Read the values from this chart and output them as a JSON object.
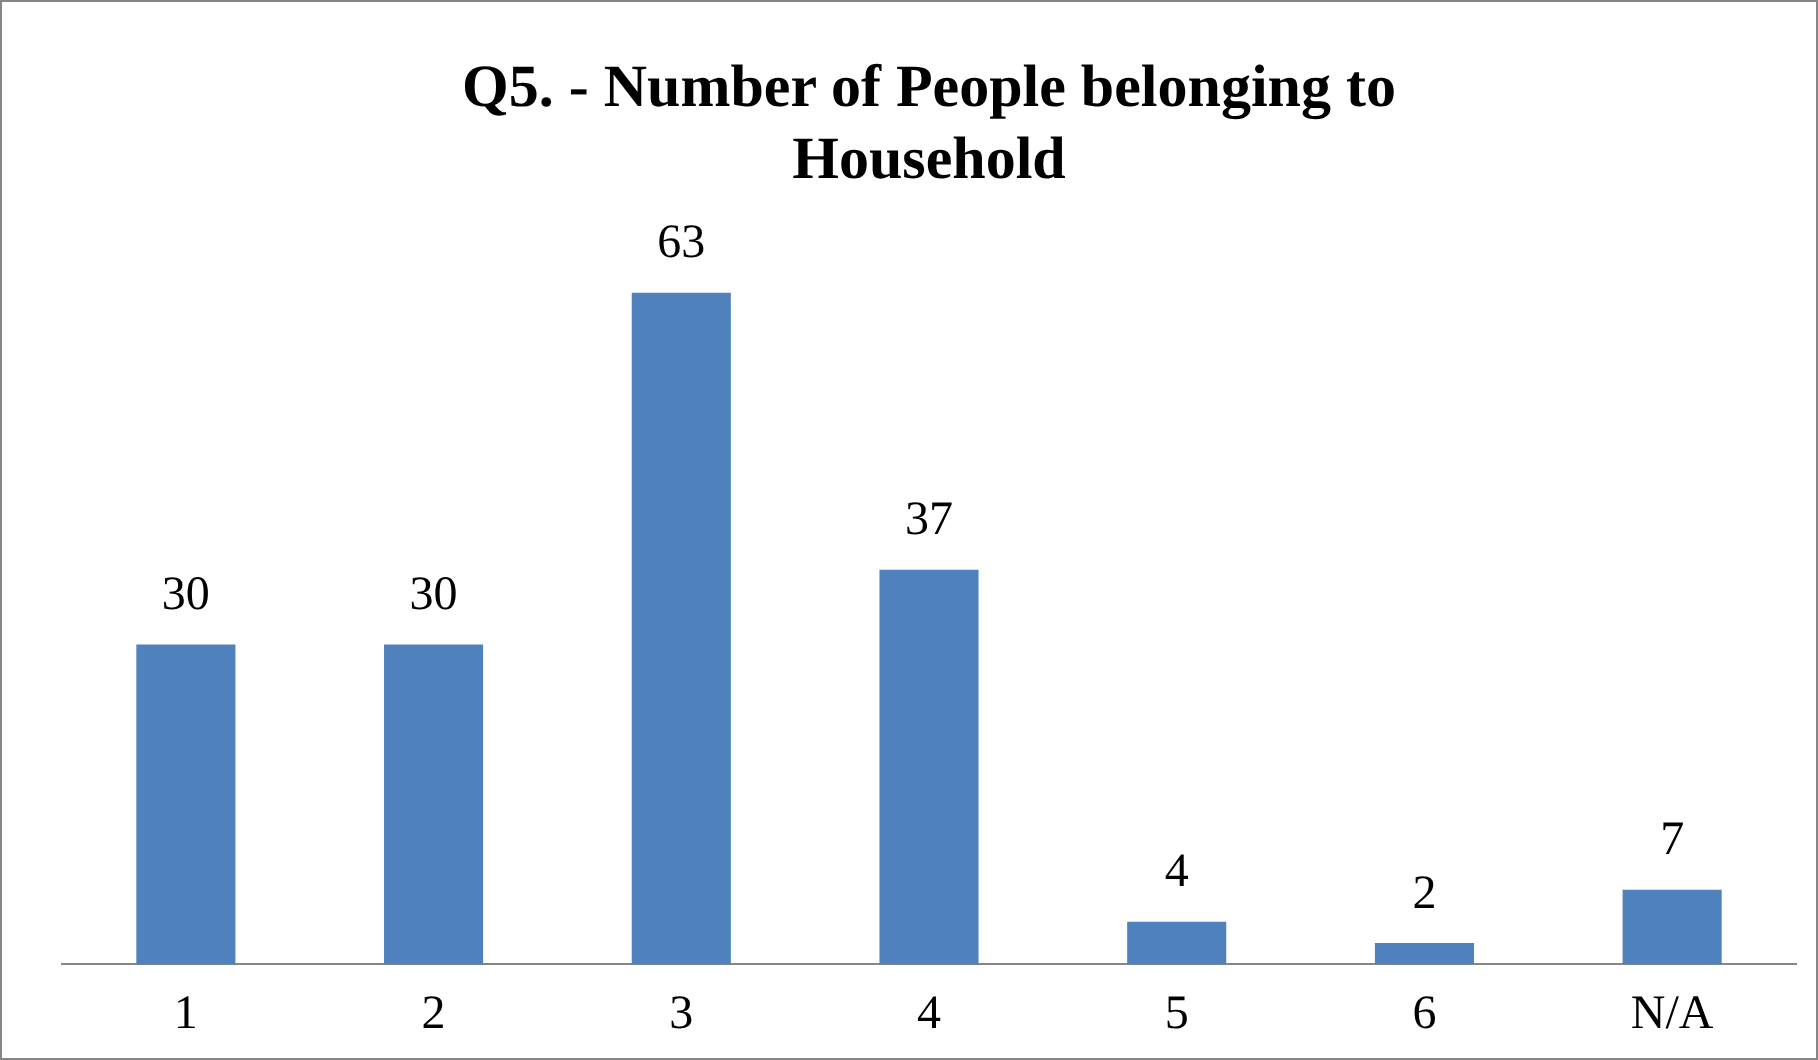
{
  "chart_data": {
    "type": "bar",
    "title": "Q5. - Number of People belonging to Household",
    "categories": [
      "1",
      "2",
      "3",
      "4",
      "5",
      "6",
      "N/A"
    ],
    "values": [
      30,
      30,
      63,
      37,
      4,
      2,
      7
    ],
    "color": "#4f81bd",
    "data_labels": true,
    "grid": false,
    "legend": false
  }
}
